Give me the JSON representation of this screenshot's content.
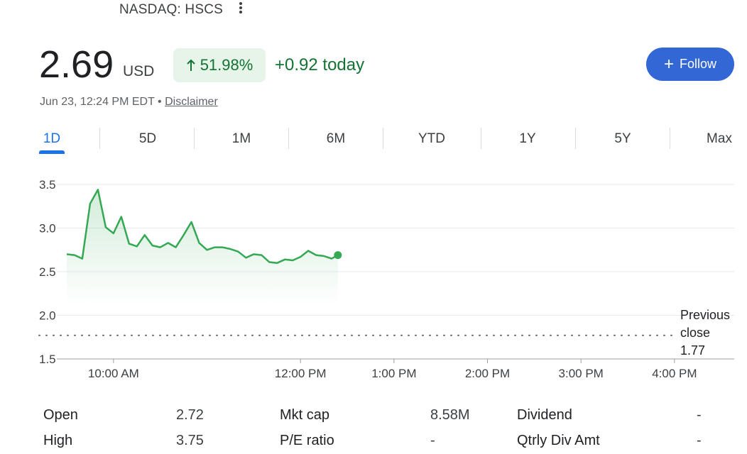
{
  "header": {
    "ticker": "NASDAQ: HSCS",
    "price": "2.69",
    "currency": "USD",
    "percent_change": "51.98%",
    "change_today": "+0.92 today",
    "follow_label": "Follow",
    "timestamp": "Jun 23, 12:24 PM EDT",
    "separator": "•",
    "disclaimer_label": "Disclaimer"
  },
  "colors": {
    "accent": "#1a73e8",
    "follow_button": "#3367d6",
    "positive": "#137333",
    "line": "#34a853",
    "badge_bg": "#e6f4ea"
  },
  "tabs": [
    {
      "label": "1D",
      "active": true
    },
    {
      "label": "5D"
    },
    {
      "label": "1M"
    },
    {
      "label": "6M"
    },
    {
      "label": "YTD"
    },
    {
      "label": "1Y"
    },
    {
      "label": "5Y"
    },
    {
      "label": "Max"
    }
  ],
  "chart_data": {
    "type": "line",
    "title": "",
    "xlabel": "",
    "ylabel": "",
    "ylim": [
      1.5,
      3.5
    ],
    "y_ticks": [
      "3.5",
      "3.0",
      "2.5",
      "2.0",
      "1.5"
    ],
    "y_tick_values": [
      3.5,
      3.0,
      2.5,
      2.0,
      1.5
    ],
    "x_ticks": [
      "10:00 AM",
      "12:00 PM",
      "1:00 PM",
      "2:00 PM",
      "3:00 PM",
      "4:00 PM"
    ],
    "x_tick_times": [
      "10:00",
      "12:00",
      "13:00",
      "14:00",
      "15:00",
      "16:00"
    ],
    "x_range": [
      "09:30",
      "16:30"
    ],
    "grid": true,
    "series": [
      {
        "x": [
          "09:30",
          "09:35",
          "09:40",
          "09:45",
          "09:50",
          "09:55",
          "10:00",
          "10:05",
          "10:10",
          "10:15",
          "10:20",
          "10:25",
          "10:30",
          "10:35",
          "10:40",
          "10:45",
          "10:50",
          "10:55",
          "11:00",
          "11:05",
          "11:10",
          "11:15",
          "11:20",
          "11:25",
          "11:30",
          "11:35",
          "11:40",
          "11:45",
          "11:50",
          "11:55",
          "12:00",
          "12:05",
          "12:10",
          "12:15",
          "12:20",
          "12:24"
        ],
        "y": [
          2.7,
          2.69,
          2.65,
          3.28,
          3.44,
          3.01,
          2.94,
          3.13,
          2.82,
          2.79,
          2.92,
          2.8,
          2.78,
          2.83,
          2.78,
          2.92,
          3.07,
          2.83,
          2.75,
          2.78,
          2.78,
          2.76,
          2.73,
          2.66,
          2.7,
          2.69,
          2.61,
          2.6,
          2.64,
          2.63,
          2.67,
          2.74,
          2.69,
          2.68,
          2.65,
          2.69
        ]
      }
    ],
    "previous_close": {
      "label_line1": "Previous",
      "label_line2": "close",
      "value": 1.77,
      "value_label": "1.77"
    }
  },
  "stats": [
    {
      "label": "Open",
      "value": "2.72"
    },
    {
      "label": "High",
      "value": "3.75"
    },
    {
      "label": "Mkt cap",
      "value": "8.58M"
    },
    {
      "label": "P/E ratio",
      "value": "-"
    },
    {
      "label": "Dividend",
      "value": "-"
    },
    {
      "label": "Qtrly Div Amt",
      "value": "-"
    }
  ]
}
